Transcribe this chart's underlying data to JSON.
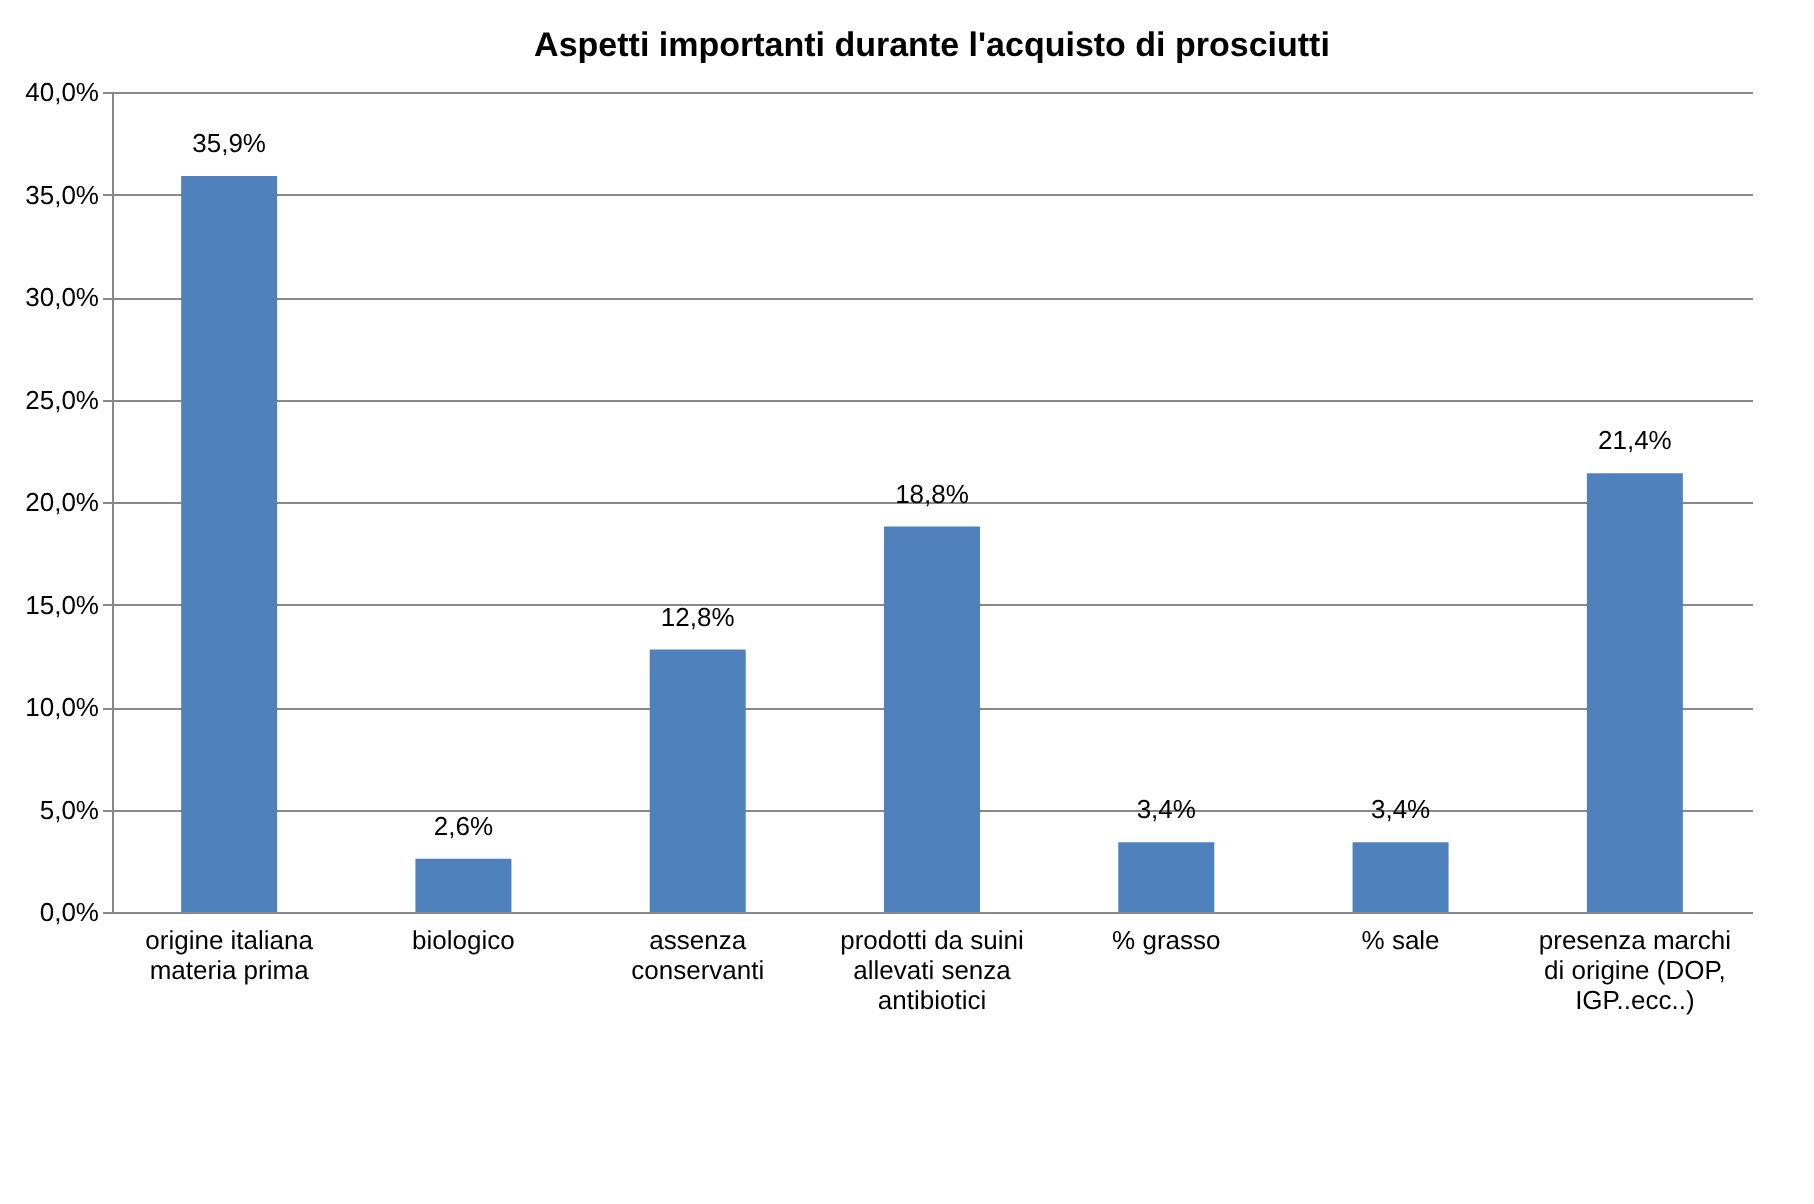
{
  "chart_data": {
    "type": "bar",
    "title": "Aspetti importanti durante l'acquisto di prosciutti",
    "categories": [
      "origine italiana materia prima",
      "biologico",
      "assenza conservanti",
      "prodotti da suini allevati senza antibiotici",
      "% grasso",
      "% sale",
      "presenza marchi di origine (DOP, IGP..ecc..)"
    ],
    "values": [
      35.9,
      2.6,
      12.8,
      18.8,
      3.4,
      3.4,
      21.4
    ],
    "value_labels": [
      "35,9%",
      "2,6%",
      "12,8%",
      "18,8%",
      "3,4%",
      "3,4%",
      "21,4%"
    ],
    "color": "#4f81bd",
    "ylim": [
      0,
      40
    ],
    "yticks": [
      {
        "value": 0,
        "label": "0,0%"
      },
      {
        "value": 5,
        "label": "5,0%"
      },
      {
        "value": 10,
        "label": "10,0%"
      },
      {
        "value": 15,
        "label": "15,0%"
      },
      {
        "value": 20,
        "label": "20,0%"
      },
      {
        "value": 25,
        "label": "25,0%"
      },
      {
        "value": 30,
        "label": "30,0%"
      },
      {
        "value": 35,
        "label": "35,0%"
      },
      {
        "value": 40,
        "label": "40,0%"
      }
    ],
    "grid": "y"
  }
}
